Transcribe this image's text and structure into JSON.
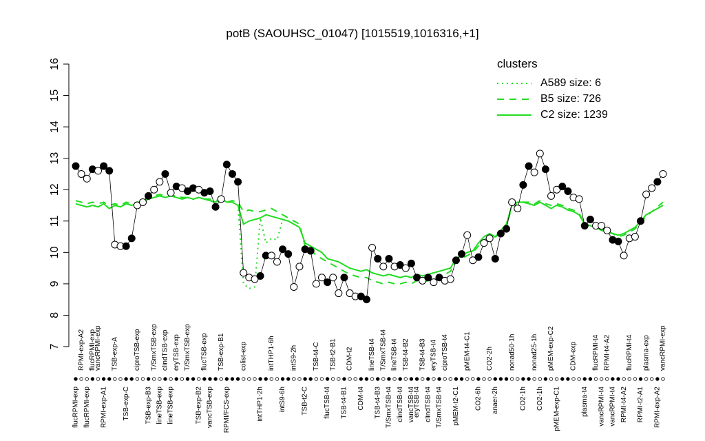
{
  "chart_data": {
    "type": "line",
    "title": "potB (SAOUHSC_01047) [1015519,1016316,+1]",
    "ylim": [
      7,
      16
    ],
    "yticks": [
      7,
      8,
      9,
      10,
      11,
      12,
      13,
      14,
      15,
      16
    ],
    "categories_top": [
      null,
      "RPMI-exp-A2",
      null,
      "flucRPMI-exp",
      "vancRPMI-exp",
      null,
      null,
      "TSB-exp-A",
      null,
      null,
      null,
      "ciproTSB-exp",
      null,
      null,
      "T/SmxTSB-exp",
      null,
      "clindTSB-exp",
      null,
      "eryTSB-exp",
      null,
      "T/SmxTSB-exp",
      null,
      null,
      "flucTSB-exp",
      null,
      null,
      "TSB-exp-B1",
      null,
      null,
      null,
      "colist-exp",
      null,
      null,
      null,
      null,
      "intTHP1-6h",
      null,
      null,
      null,
      "intS9-2h",
      null,
      null,
      null,
      "TSB-t4-C",
      null,
      null,
      "TSB-t2-B1",
      null,
      null,
      "CDM-t2",
      null,
      null,
      null,
      "lineTSB-t4",
      null,
      "T/SmxTSB-t4",
      null,
      "lineTSB-t4",
      null,
      "TSB-t4-B2",
      null,
      null,
      "TSB-t4-B3",
      null,
      "eryTSB-t4",
      null,
      "ciproTSB-t4",
      null,
      null,
      null,
      "pMEM-t4-C1",
      null,
      null,
      null,
      "CO2-2h",
      null,
      null,
      null,
      "nonad50-1h",
      null,
      null,
      null,
      "nonad25-1h",
      null,
      null,
      "pMEM-exp-C2",
      null,
      null,
      null,
      "CDM-exp",
      null,
      null,
      null,
      "flucRPMI-t4",
      null,
      "RPMI-t4-A2",
      null,
      null,
      null,
      "flucRPMI-t4",
      null,
      null,
      "plasma-exp",
      null,
      null,
      "vancRPMI-exp"
    ],
    "categories_bottom": [
      "flucRPMI-exp",
      null,
      "flucRPMI-exp",
      null,
      null,
      "RPMI-exp-A1",
      null,
      null,
      null,
      "TSB-exp-C",
      null,
      null,
      null,
      "TSB-exp-B3",
      null,
      "lineTSB-exp",
      null,
      "lineTSB-exp",
      null,
      null,
      null,
      null,
      "TSB-exp-B2",
      null,
      "vancTSB-exp",
      null,
      null,
      "RPMI/FCS-exp",
      null,
      null,
      null,
      null,
      null,
      "intTHP1-2h",
      null,
      null,
      null,
      "intS9-6h",
      null,
      null,
      null,
      "TSB-t2-C",
      null,
      null,
      null,
      "flucTSB-t4",
      null,
      null,
      "TSB-t4-B1",
      null,
      null,
      "CDM-t4",
      null,
      null,
      "TSB-t4-B3",
      null,
      "T/SmxTSB-t4",
      null,
      "clindTSB-t4",
      null,
      "vancTSB-t4",
      "eryTSB-t4",
      null,
      "clindTSB-t4",
      null,
      "T/SmxTSB-t4",
      null,
      null,
      "pMEM-t2-C1",
      null,
      null,
      null,
      "CO2-6h",
      null,
      null,
      "anaer-2h",
      null,
      null,
      null,
      null,
      "CO2-1h",
      null,
      null,
      "CO2-1h",
      null,
      null,
      "pMEM-exp-C1",
      null,
      null,
      null,
      null,
      "plasma-t4",
      null,
      null,
      "vancRPMI-t4",
      null,
      "vancRPMI-t4",
      null,
      "RPMI-t4-A2",
      null,
      null,
      "RPMI-t2-A1",
      null,
      null,
      "RPMI-exp-A2",
      null
    ],
    "points": {
      "color": "#000000",
      "values": [
        12.75,
        12.5,
        12.35,
        12.65,
        12.6,
        12.75,
        12.6,
        10.25,
        10.2,
        10.2,
        10.45,
        11.5,
        11.6,
        11.8,
        12.0,
        12.25,
        12.5,
        11.9,
        12.1,
        12.05,
        11.95,
        12.05,
        12.0,
        11.9,
        11.95,
        11.45,
        11.7,
        12.8,
        12.5,
        12.25,
        9.35,
        9.2,
        9.15,
        9.25,
        9.9,
        9.9,
        9.7,
        10.1,
        9.95,
        8.9,
        9.55,
        10.1,
        10.05,
        9.0,
        9.2,
        9.05,
        9.2,
        8.7,
        9.2,
        8.7,
        8.6,
        8.6,
        8.5,
        10.15,
        9.8,
        9.55,
        9.8,
        9.55,
        9.6,
        9.5,
        9.65,
        9.2,
        9.1,
        9.2,
        9.05,
        9.2,
        9.1,
        9.15,
        9.75,
        9.95,
        10.55,
        9.75,
        9.85,
        10.3,
        10.45,
        9.8,
        10.6,
        10.75,
        11.6,
        11.4,
        12.15,
        12.75,
        12.55,
        13.15,
        12.65,
        11.8,
        12.0,
        12.1,
        11.95,
        11.75,
        11.7,
        10.85,
        11.05,
        10.85,
        10.85,
        10.7,
        10.4,
        10.35,
        9.9,
        10.45,
        10.5,
        11.0,
        11.85,
        12.05,
        12.25,
        12.5
      ],
      "filled": [
        true,
        false,
        false,
        true,
        false,
        true,
        true,
        false,
        false,
        true,
        true,
        false,
        false,
        true,
        false,
        false,
        true,
        false,
        true,
        false,
        true,
        true,
        false,
        true,
        true,
        true,
        false,
        true,
        true,
        true,
        false,
        false,
        false,
        true,
        true,
        false,
        false,
        true,
        true,
        false,
        false,
        true,
        true,
        false,
        false,
        true,
        false,
        false,
        true,
        false,
        false,
        true,
        true,
        false,
        true,
        false,
        true,
        false,
        true,
        false,
        true,
        true,
        false,
        true,
        false,
        true,
        false,
        false,
        true,
        true,
        false,
        false,
        true,
        false,
        false,
        true,
        true,
        true,
        false,
        false,
        true,
        true,
        false,
        false,
        true,
        false,
        false,
        true,
        true,
        false,
        false,
        true,
        true,
        false,
        false,
        false,
        true,
        true,
        false,
        false,
        false,
        true,
        false,
        false,
        true,
        false
      ]
    },
    "legend_title": "clusters",
    "legend": "top-right",
    "series": [
      {
        "name": "A589 size: 6",
        "color": "#22dd22",
        "style": "dotted",
        "values": [
          11.55,
          11.5,
          11.45,
          11.5,
          11.45,
          11.55,
          11.4,
          11.5,
          11.45,
          11.55,
          11.5,
          11.55,
          11.6,
          11.7,
          11.75,
          11.8,
          11.75,
          11.8,
          11.75,
          11.7,
          11.75,
          11.7,
          11.75,
          11.7,
          11.65,
          11.6,
          11.7,
          11.6,
          11.6,
          11.5,
          9.0,
          8.85,
          8.9,
          11.1,
          10.3,
          10.45,
          10.4,
          11.05,
          11.0,
          10.9,
          10.8,
          10.3,
          10.2,
          10.1,
          10.0,
          9.8,
          9.75,
          9.7,
          9.6,
          9.5,
          9.45,
          9.4,
          9.45,
          9.35,
          9.3,
          9.25,
          9.3,
          9.25,
          9.2,
          9.25,
          9.2,
          9.3,
          9.25,
          9.3,
          9.35,
          9.4,
          9.45,
          9.5,
          9.8,
          9.9,
          10.0,
          10.05,
          10.3,
          10.5,
          10.6,
          10.5,
          10.7,
          10.9,
          11.5,
          11.6,
          11.6,
          11.55,
          11.5,
          11.6,
          11.5,
          11.4,
          11.5,
          11.45,
          11.35,
          11.3,
          11.2,
          10.9,
          10.85,
          10.8,
          10.75,
          10.7,
          10.6,
          10.55,
          10.6,
          10.7,
          10.8,
          11.0,
          11.2,
          11.3,
          11.4,
          11.5
        ]
      },
      {
        "name": "B5 size: 726",
        "color": "#22dd22",
        "style": "dashed",
        "values": [
          11.65,
          11.6,
          11.55,
          11.6,
          11.55,
          11.6,
          11.5,
          11.55,
          11.5,
          11.6,
          11.55,
          11.6,
          11.6,
          11.8,
          11.8,
          11.85,
          11.8,
          11.8,
          11.8,
          11.75,
          11.75,
          11.7,
          11.75,
          11.7,
          11.7,
          11.65,
          11.7,
          11.6,
          11.65,
          11.6,
          11.3,
          11.35,
          11.3,
          11.3,
          11.35,
          11.4,
          11.3,
          11.2,
          11.1,
          11.0,
          10.9,
          10.2,
          10.1,
          9.9,
          9.8,
          9.7,
          9.6,
          9.5,
          9.4,
          9.3,
          9.25,
          9.2,
          9.2,
          9.1,
          9.05,
          9.0,
          9.05,
          9.0,
          9.0,
          9.05,
          9.0,
          9.1,
          9.05,
          9.1,
          9.15,
          9.2,
          9.3,
          9.4,
          9.7,
          9.8,
          9.9,
          10.0,
          10.2,
          10.4,
          10.5,
          10.5,
          10.6,
          10.8,
          11.5,
          11.55,
          11.6,
          11.6,
          11.55,
          11.65,
          11.55,
          11.5,
          11.55,
          11.5,
          11.4,
          11.35,
          11.25,
          10.9,
          10.85,
          10.8,
          10.7,
          10.65,
          10.6,
          10.5,
          10.55,
          10.65,
          10.75,
          10.95,
          11.15,
          11.3,
          11.45,
          11.6
        ]
      },
      {
        "name": "C2 size: 1239",
        "color": "#22dd22",
        "style": "solid",
        "values": [
          11.55,
          11.5,
          11.45,
          11.5,
          11.45,
          11.55,
          11.4,
          11.5,
          11.45,
          11.55,
          11.5,
          11.55,
          11.6,
          11.7,
          11.75,
          11.8,
          11.75,
          11.8,
          11.75,
          11.7,
          11.75,
          11.7,
          11.75,
          11.7,
          11.65,
          11.6,
          11.7,
          11.6,
          11.6,
          11.5,
          10.9,
          11.0,
          11.05,
          11.1,
          11.2,
          11.15,
          11.1,
          11.05,
          11.0,
          10.9,
          10.8,
          10.3,
          10.2,
          10.1,
          10.0,
          9.8,
          9.75,
          9.7,
          9.6,
          9.5,
          9.45,
          9.4,
          9.45,
          9.35,
          9.3,
          9.25,
          9.3,
          9.25,
          9.2,
          9.25,
          9.2,
          9.3,
          9.25,
          9.3,
          9.35,
          9.4,
          9.45,
          9.5,
          9.8,
          9.9,
          10.0,
          10.05,
          10.3,
          10.5,
          10.6,
          10.5,
          10.7,
          10.9,
          11.5,
          11.6,
          11.6,
          11.55,
          11.5,
          11.6,
          11.5,
          11.4,
          11.5,
          11.45,
          11.35,
          11.3,
          11.2,
          10.9,
          10.85,
          10.8,
          10.75,
          10.7,
          10.6,
          10.55,
          10.6,
          10.7,
          10.8,
          11.0,
          11.2,
          11.3,
          11.4,
          11.5
        ]
      }
    ]
  }
}
